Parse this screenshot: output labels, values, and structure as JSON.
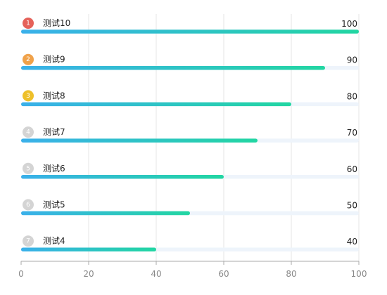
{
  "chart_data": {
    "type": "bar",
    "orientation": "horizontal",
    "categories": [
      "测试10",
      "测试9",
      "测试8",
      "测试7",
      "测试6",
      "测试5",
      "测试4"
    ],
    "ranks": [
      "1",
      "2",
      "3",
      "4",
      "5",
      "6",
      "7"
    ],
    "values": [
      100,
      90,
      80,
      70,
      60,
      50,
      40
    ],
    "xlim": [
      0,
      100
    ],
    "xticks": [
      0,
      20,
      40,
      60,
      80,
      100
    ],
    "grid": "vertical",
    "title": "",
    "xlabel": "",
    "ylabel": "",
    "colors": {
      "gradient_start": "#3ab0ea",
      "gradient_end": "#22d6a2",
      "track": "#eef4fb",
      "gridline": "#e6e6e6",
      "axis": "#aaaaaa",
      "rank_badges": [
        "#e5625a",
        "#f0a24a",
        "#eec02a",
        "#d4d4d4",
        "#d4d4d4",
        "#d4d4d4",
        "#d4d4d4"
      ]
    }
  }
}
